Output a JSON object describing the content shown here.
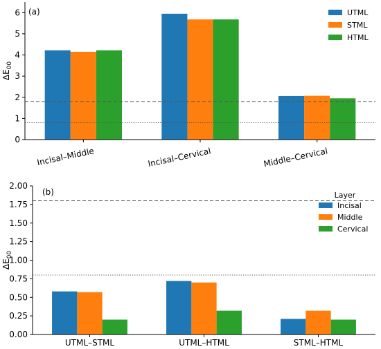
{
  "chart_data": [
    {
      "type": "bar",
      "panel_label": "(a)",
      "ylabel": "ΔE",
      "ylabel_sub": "00",
      "categories": [
        "Incisal–Middle",
        "Incisal–Cervical",
        "Middle–Cervical"
      ],
      "category_label_rotation": -12,
      "series": [
        {
          "name": "UTML",
          "color": "#1f77b4",
          "values": [
            4.22,
            5.95,
            2.06
          ]
        },
        {
          "name": "STML",
          "color": "#ff7f0e",
          "values": [
            4.15,
            5.68,
            2.07
          ]
        },
        {
          "name": "HTML",
          "color": "#2ca02c",
          "values": [
            4.22,
            5.68,
            1.95
          ]
        }
      ],
      "ylim": [
        0,
        6.5
      ],
      "yticks": [
        0,
        1,
        2,
        3,
        4,
        5,
        6
      ],
      "ytick_labels": [
        "0",
        "1",
        "2",
        "3",
        "4",
        "5",
        "6"
      ],
      "reference_lines": [
        {
          "y": 1.8,
          "style": "dashed"
        },
        {
          "y": 0.8,
          "style": "dotted"
        }
      ],
      "legend": {
        "placement": "top-right",
        "title": ""
      },
      "grid": false
    },
    {
      "type": "bar",
      "panel_label": "(b)",
      "ylabel": "ΔE",
      "ylabel_sub": "00",
      "categories": [
        "UTML–STML",
        "UTML–HTML",
        "STML–HTML"
      ],
      "category_label_rotation": 0,
      "series": [
        {
          "name": "Incisal",
          "color": "#1f77b4",
          "values": [
            0.58,
            0.72,
            0.21
          ]
        },
        {
          "name": "Middle",
          "color": "#ff7f0e",
          "values": [
            0.57,
            0.7,
            0.32
          ]
        },
        {
          "name": "Cervical",
          "color": "#2ca02c",
          "values": [
            0.2,
            0.32,
            0.2
          ]
        }
      ],
      "ylim": [
        0,
        2.0
      ],
      "yticks": [
        0,
        0.25,
        0.5,
        0.75,
        1.0,
        1.25,
        1.5,
        1.75,
        2.0
      ],
      "ytick_labels": [
        "0.00",
        "0.25",
        "0.50",
        "0.75",
        "1.00",
        "1.25",
        "1.50",
        "1.75",
        "2.00"
      ],
      "reference_lines": [
        {
          "y": 1.8,
          "style": "dashed"
        },
        {
          "y": 0.8,
          "style": "dotted"
        }
      ],
      "legend": {
        "placement": "top-right",
        "title": "Layer"
      },
      "grid": false
    }
  ]
}
